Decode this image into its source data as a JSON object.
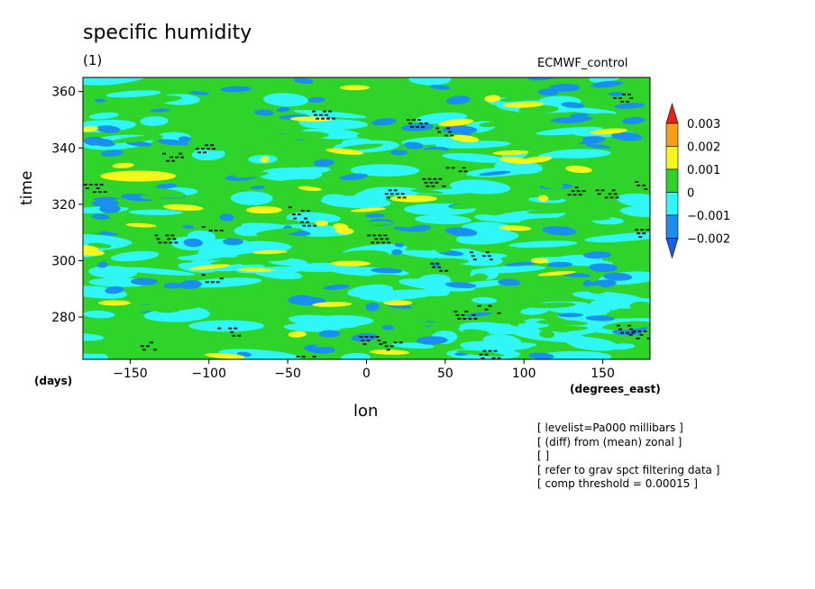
{
  "chart_data": {
    "type": "heatmap",
    "title": "specific humidity",
    "subtitle": "(1)",
    "source_label": "ECMWF_control",
    "xlabel": "lon",
    "ylabel": "time",
    "x_units": "(degrees_east)",
    "y_units": "(days)",
    "xlim": [
      -180,
      180
    ],
    "ylim": [
      265,
      365
    ],
    "x_ticks": [
      -150,
      -100,
      -50,
      0,
      50,
      100,
      150
    ],
    "y_ticks": [
      280,
      300,
      320,
      340,
      360
    ],
    "colorbar": {
      "levels": [
        "0.003",
        "0.002",
        "0.001",
        "0",
        "−0.001",
        "−0.002"
      ],
      "colors": [
        "#e8231b",
        "#f7a110",
        "#f7f71a",
        "#2fd42a",
        "#2ff7f7",
        "#1a8ff2",
        "#1a5cf0"
      ]
    },
    "field_colors": {
      "deep_blue": "#1a8ff2",
      "cyan": "#2ff7f7",
      "green": "#2fd42a",
      "yellow": "#f7f71a"
    },
    "notes": [
      "[ levelist=Pa000 millibars ]",
      "[ (diff) from (mean) zonal ]",
      "[  ]",
      "[ refer to grav spct filtering data ]",
      "[ comp threshold = 0.00015 ]"
    ]
  }
}
